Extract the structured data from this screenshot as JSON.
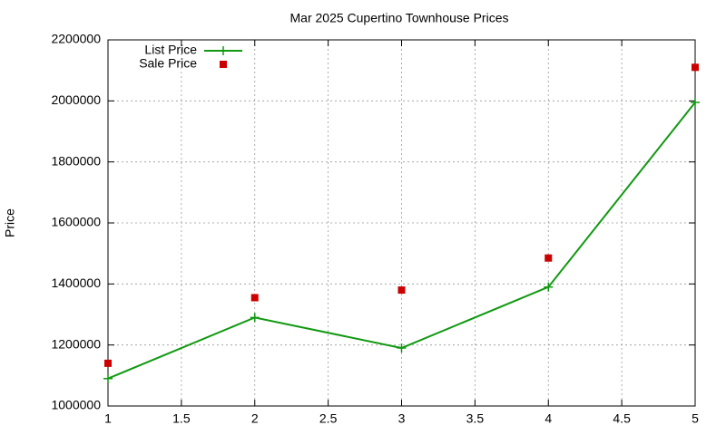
{
  "chart_data": {
    "type": "line",
    "title": "Mar 2025 Cupertino Townhouse Prices",
    "y_label": "Price",
    "x": [
      1,
      2,
      3,
      4,
      5
    ],
    "series": [
      {
        "name": "List Price",
        "color": "#119911",
        "marker": "plus",
        "line": true,
        "values": [
          1090000,
          1290000,
          1190000,
          1390000,
          1995000
        ]
      },
      {
        "name": "Sale Price",
        "color": "#cc0000",
        "marker": "square",
        "line": false,
        "values": [
          1140000,
          1355000,
          1380000,
          1485000,
          2110000
        ]
      }
    ],
    "xlim": [
      1,
      5
    ],
    "xticks": [
      1,
      1.5,
      2,
      2.5,
      3,
      3.5,
      4,
      4.5,
      5
    ],
    "ylim": [
      1000000,
      2200000
    ],
    "yticks": [
      1000000,
      1200000,
      1400000,
      1600000,
      1800000,
      2000000,
      2200000
    ],
    "grid": true,
    "legend": "top-left"
  }
}
